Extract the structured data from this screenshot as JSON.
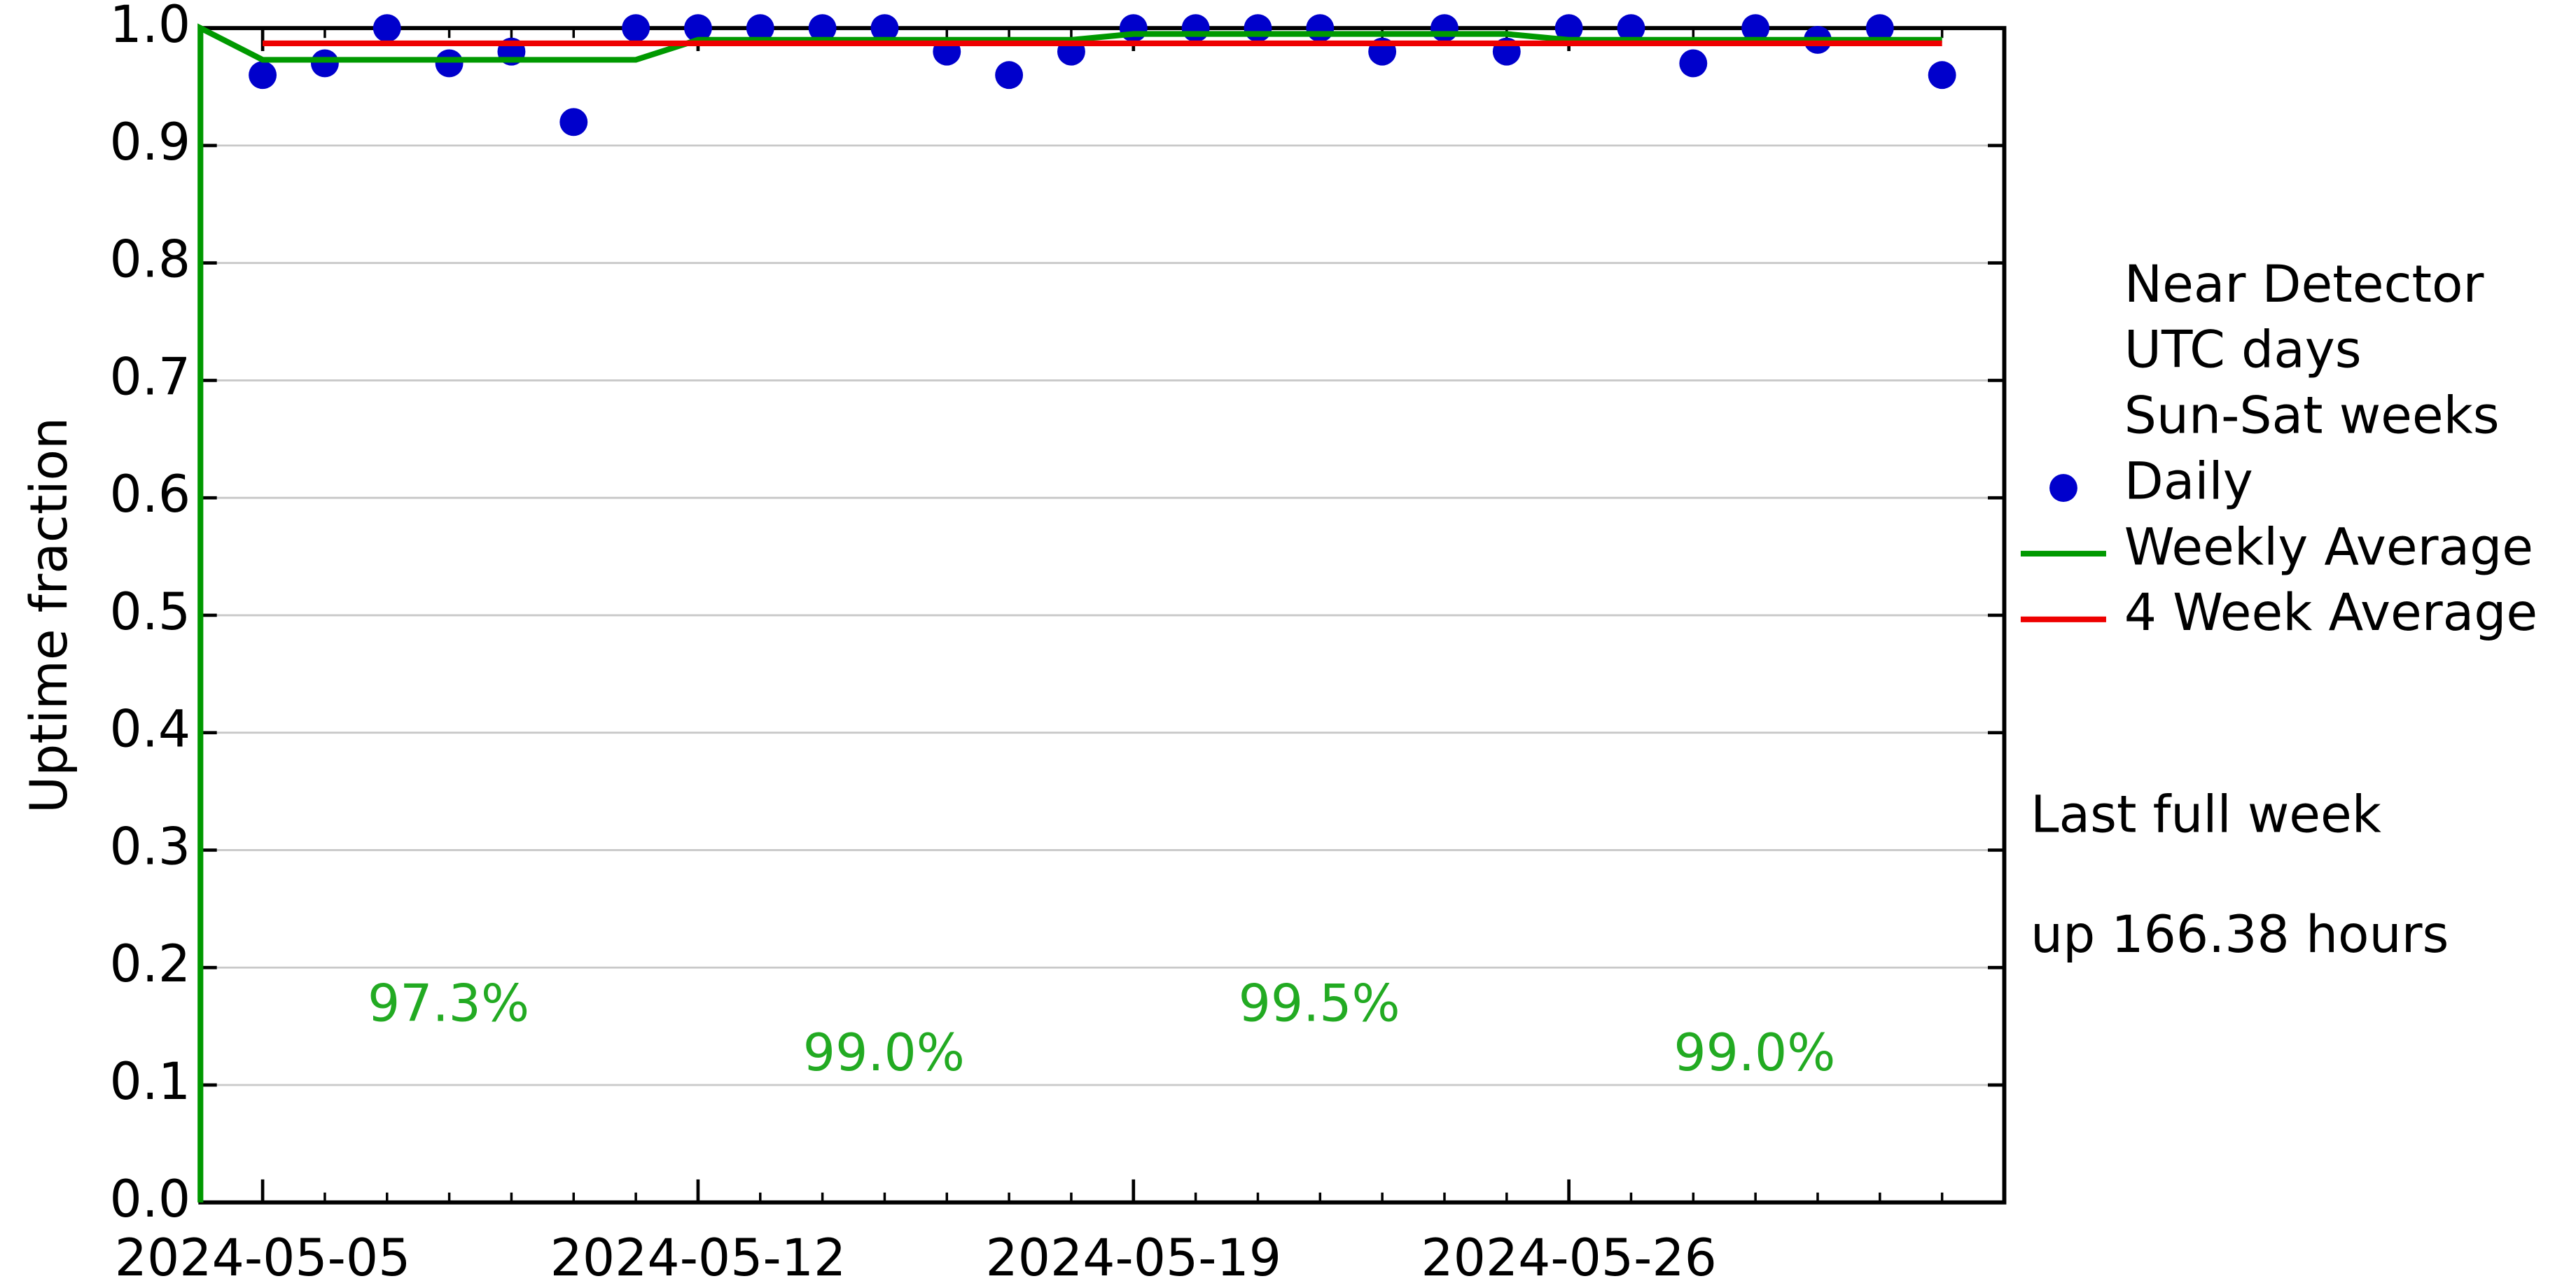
{
  "chart_data": {
    "type": "scatter",
    "ylabel": "Uptime fraction",
    "x": [
      "2024-05-05",
      "2024-05-06",
      "2024-05-07",
      "2024-05-08",
      "2024-05-09",
      "2024-05-10",
      "2024-05-11",
      "2024-05-12",
      "2024-05-13",
      "2024-05-14",
      "2024-05-15",
      "2024-05-16",
      "2024-05-17",
      "2024-05-18",
      "2024-05-19",
      "2024-05-20",
      "2024-05-21",
      "2024-05-22",
      "2024-05-23",
      "2024-05-24",
      "2024-05-25",
      "2024-05-26",
      "2024-05-27",
      "2024-05-28",
      "2024-05-29",
      "2024-05-30",
      "2024-05-31",
      "2024-06-01"
    ],
    "series": [
      {
        "name": "Daily",
        "color": "#0000cc",
        "values": [
          0.96,
          0.97,
          1.0,
          0.97,
          0.98,
          0.92,
          1.0,
          1.0,
          1.0,
          1.0,
          1.0,
          0.98,
          0.96,
          0.98,
          1.0,
          1.0,
          1.0,
          1.0,
          0.98,
          1.0,
          0.98,
          1.0,
          1.0,
          0.97,
          1.0,
          0.99,
          1.0,
          0.96
        ]
      },
      {
        "name": "Weekly Average",
        "color": "#009900",
        "type": "line",
        "x": [
          "2024-05-04",
          "2024-05-04",
          "2024-05-05",
          "2024-05-11",
          "2024-05-12",
          "2024-05-18",
          "2024-05-19",
          "2024-05-25",
          "2024-05-26",
          "2024-06-01"
        ],
        "values": [
          0,
          1.0,
          0.973,
          0.973,
          0.99,
          0.99,
          0.995,
          0.995,
          0.99,
          0.99
        ]
      },
      {
        "name": "4 Week Average",
        "color": "#ee0000",
        "type": "line",
        "x": [
          "2024-05-05",
          "2024-06-01"
        ],
        "values": [
          0.987,
          0.987
        ]
      }
    ],
    "legend_header": [
      "Near Detector",
      "UTC days",
      "Sun-Sat weeks"
    ],
    "annotations": [
      "97.3%",
      "99.0%",
      "99.5%",
      "99.0%"
    ],
    "annotation_color": "#22aa22",
    "side_notes": [
      "Last full week",
      "up 166.38 hours"
    ],
    "xlim": [
      "2024-05-04",
      "2024-06-02"
    ],
    "xticks": [
      "2024-05-05",
      "2024-05-12",
      "2024-05-19",
      "2024-05-26"
    ],
    "ylim": [
      0,
      1
    ],
    "yticks": [
      {
        "value": 0,
        "label": "0.0"
      },
      0.1,
      0.2,
      0.3,
      0.4,
      0.5,
      0.6,
      0.7,
      0.8,
      0.9,
      {
        "value": 1,
        "label": "1.0"
      }
    ],
    "grid": true
  }
}
